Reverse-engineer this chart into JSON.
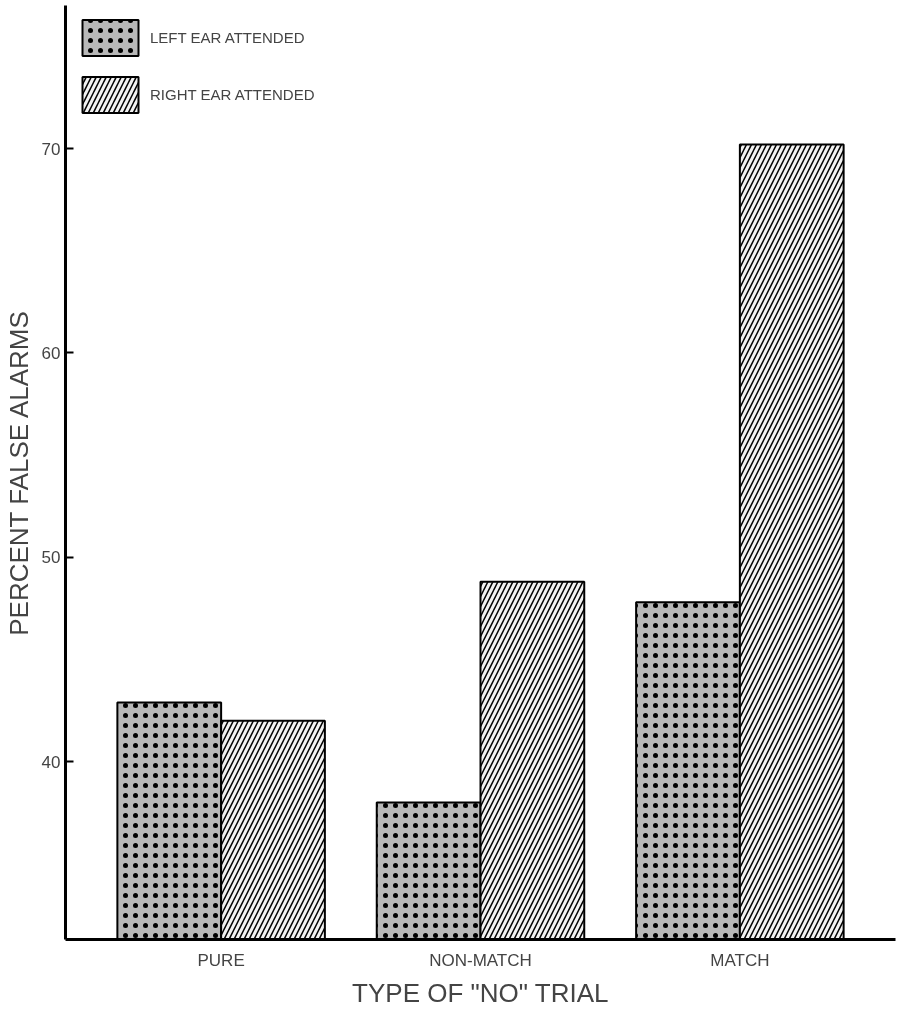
{
  "chart_data": {
    "type": "bar",
    "xlabel": "TYPE OF \"NO\" TRIAL",
    "ylabel": "PERCENT FALSE ALARMS",
    "categories": [
      "PURE",
      "NON-MATCH",
      "MATCH"
    ],
    "series": [
      {
        "name": "LEFT EAR ATTENDED",
        "color": "#b8b8b8",
        "values": [
          42.9,
          38.0,
          47.8
        ]
      },
      {
        "name": "RIGHT EAR ATTENDED",
        "color": "#f2f2f2",
        "values": [
          42.0,
          48.8,
          70.2
        ]
      }
    ],
    "ylim": [
      31.3,
      77
    ],
    "yticks": [
      40,
      50,
      60,
      70
    ],
    "grid": false,
    "legend": "top left"
  }
}
